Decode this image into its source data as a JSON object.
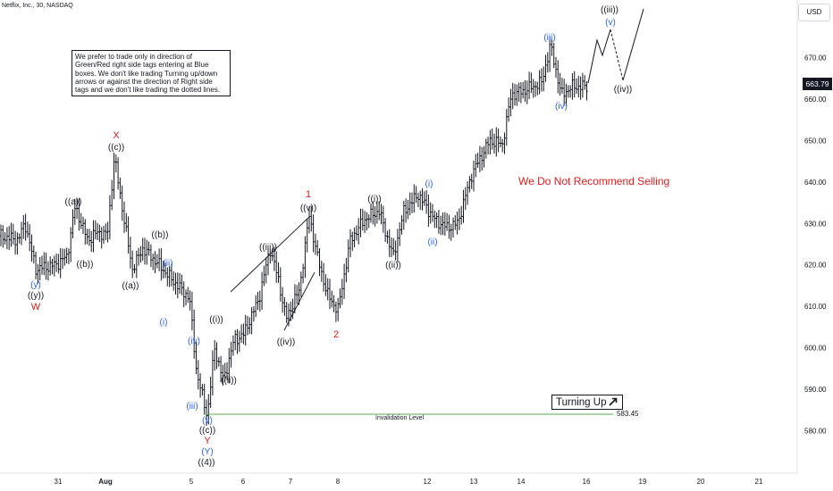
{
  "header": {
    "symbol": "Netflix, Inc., 30, NASDAQ",
    "currency": "USD"
  },
  "note": {
    "text": "We prefer to trade only in direction of Green/Red right side tags entering at Blue boxes. We don't like trading Turning up/down arrows or against the direction of Right side tags and we don't like trading the dotted lines."
  },
  "warning": "We Do Not Recommend Selling",
  "badge": {
    "label": "Turning Up",
    "icon": "arrow-up-right-icon"
  },
  "invalidation": {
    "label": "Invalidation Level",
    "price_label": "583.45",
    "price": 583.45
  },
  "last_price": "663.79",
  "colors": {
    "black": "#131722",
    "red": "#e31a1c",
    "blue": "#2962ff",
    "green": "#4caf50"
  },
  "chart_data": {
    "type": "bar",
    "title": "Netflix, Inc., 30, NASDAQ",
    "y_ticks": [
      "580.00",
      "590.00",
      "600.00",
      "610.00",
      "620.00",
      "630.00",
      "640.00",
      "650.00",
      "660.00",
      "670.00",
      "680.00"
    ],
    "ylim": [
      571,
      690
    ],
    "x_ticks": [
      "31",
      "Aug",
      "5",
      "6",
      "7",
      "8",
      "12",
      "13",
      "14",
      "16",
      "19",
      "20",
      "21"
    ],
    "grid": false,
    "ohlc_summary": [
      {
        "x": "31",
        "high": 630,
        "low": 618
      },
      {
        "x": "Aug",
        "high": 647,
        "low": 617
      },
      {
        "x": "5",
        "high": 604,
        "low": 583.45
      },
      {
        "x": "6",
        "high": 628,
        "low": 601
      },
      {
        "x": "7",
        "high": 632,
        "low": 610
      },
      {
        "x": "8",
        "high": 624,
        "low": 606
      },
      {
        "x": "12",
        "high": 638,
        "low": 622
      },
      {
        "x": "13",
        "high": 640,
        "low": 629
      },
      {
        "x": "14",
        "high": 664,
        "low": 646
      },
      {
        "x": "16",
        "high": 673,
        "low": 659
      }
    ],
    "projection": [
      {
        "label": "((iii))",
        "value": 677
      },
      {
        "label": "((iv))",
        "value": 664
      },
      {
        "label": "end",
        "value": 688
      }
    ],
    "wave_labels": [
      {
        "text": "(y)",
        "color": "blue"
      },
      {
        "text": "((y))",
        "color": "black"
      },
      {
        "text": "W",
        "color": "red"
      },
      {
        "text": "((a))",
        "color": "black"
      },
      {
        "text": "((b))",
        "color": "black"
      },
      {
        "text": "X",
        "color": "red"
      },
      {
        "text": "((c))",
        "color": "black"
      },
      {
        "text": "((a))",
        "color": "black"
      },
      {
        "text": "((b))",
        "color": "black"
      },
      {
        "text": "(ii)",
        "color": "blue"
      },
      {
        "text": "(i)",
        "color": "blue"
      },
      {
        "text": "(iv)",
        "color": "blue"
      },
      {
        "text": "(iii)",
        "color": "blue"
      },
      {
        "text": "(v)",
        "color": "blue"
      },
      {
        "text": "((c))",
        "color": "black"
      },
      {
        "text": "Y",
        "color": "red"
      },
      {
        "text": "(Y)",
        "color": "blue"
      },
      {
        "text": "((4))",
        "color": "black"
      },
      {
        "text": "((i))",
        "color": "black"
      },
      {
        "text": "((ii))",
        "color": "black"
      },
      {
        "text": "((iii))",
        "color": "black"
      },
      {
        "text": "((iv))",
        "color": "black"
      },
      {
        "text": "1",
        "color": "red"
      },
      {
        "text": "((v))",
        "color": "black"
      },
      {
        "text": "2",
        "color": "red"
      },
      {
        "text": "((i))",
        "color": "black"
      },
      {
        "text": "((ii))",
        "color": "black"
      },
      {
        "text": "(i)",
        "color": "blue"
      },
      {
        "text": "(ii)",
        "color": "blue"
      },
      {
        "text": "(iii)",
        "color": "blue"
      },
      {
        "text": "(iv)",
        "color": "blue"
      },
      {
        "text": "((iii))",
        "color": "black"
      },
      {
        "text": "(v)",
        "color": "blue"
      },
      {
        "text": "((iv))",
        "color": "black"
      }
    ]
  }
}
